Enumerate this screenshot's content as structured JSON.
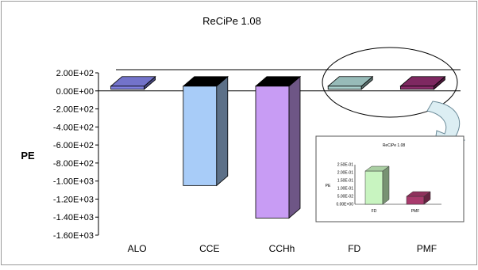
{
  "chart_data": {
    "type": "bar",
    "title": "ReCiPe 1.08",
    "ylabel": "PE",
    "xlabel": "",
    "categories": [
      "ALO",
      "CCE",
      "CCHh",
      "FD",
      "PMF"
    ],
    "values": [
      0,
      -1050,
      -1410,
      0,
      0
    ],
    "ylim": [
      -1600,
      200
    ],
    "yticks": [
      "2.00E+02",
      "0.00E+00",
      "-2.00E+02",
      "-4.00E+02",
      "-6.00E+02",
      "-8.00E+02",
      "-1.00E+03",
      "-1.20E+03",
      "-1.40E+03",
      "-1.60E+03"
    ],
    "bar_colors": [
      "#8080e0",
      "#a8ccf8",
      "#c89cf4",
      "#a8d0cc",
      "#8c2c6c"
    ],
    "grid": false,
    "legend": "none",
    "inset": {
      "type": "bar",
      "title": "ReCiPe 1.08",
      "ylabel": "PE",
      "categories": [
        "FD",
        "PMF"
      ],
      "values": [
        0.21,
        0.05
      ],
      "ylim": [
        0,
        0.25
      ],
      "yticks": [
        "2.50E-01",
        "2.00E-01",
        "1.50E-01",
        "1.00E-01",
        "5.00E-02",
        "0.00E+00"
      ],
      "bar_colors": [
        "#c8f4c0",
        "#a83a6c"
      ]
    }
  }
}
